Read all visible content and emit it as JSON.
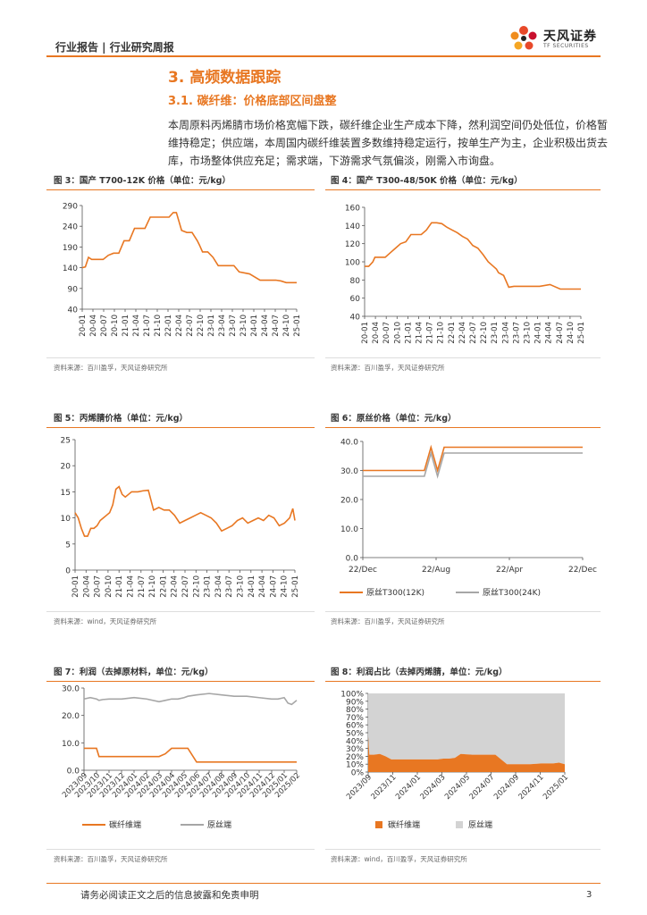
{
  "header": {
    "text": "行业报告 | 行业研究周报",
    "logo_cn": "天风证券",
    "logo_en": "TF SECURITIES"
  },
  "section": {
    "h1": "3. 高频数据跟踪",
    "h2": "3.1. 碳纤维：价格底部区间盘整"
  },
  "paragraph": "本周原料丙烯腈市场价格宽幅下跌，碳纤维企业生产成本下降，然利润空间仍处低位，价格暂维持稳定；供应端，本周国内碳纤维装置多数维持稳定运行，按单生产为主，企业积极出货去库，市场整体供应充足；需求端，下游需求气氛偏淡，刚需入市询盘。",
  "colors": {
    "accent": "#e87722",
    "grey": "#a6a6a6",
    "fill_grey": "#d3d3d3"
  },
  "figures": [
    {
      "title": "图 3：国产 T700-12K 价格（单位：元/kg）",
      "source": "资料来源：百川盈孚，天风证券研究所"
    },
    {
      "title": "图 4：国产 T300-48/50K 价格（单位：元/kg）",
      "source": "资料来源：百川盈孚，天风证券研究所"
    },
    {
      "title": "图 5：丙烯腈价格（单位：元/kg）",
      "source": "资料来源：wind，天风证券研究所"
    },
    {
      "title": "图 6：原丝价格（单位：元/kg）",
      "source": "资料来源：百川盈孚，天风证券研究所"
    },
    {
      "title": "图 7：利润（去掉原材料，单位：元/kg）",
      "source": "资料来源：百川盈孚，天风证券研究所"
    },
    {
      "title": "图 8：利润占比（去掉丙烯腈，单位：元/kg）",
      "source": "资料来源：wind，百川盈孚，天风证券研究所"
    }
  ],
  "chart_data": [
    {
      "type": "line",
      "title": "国产 T700-12K 价格",
      "ylim": [
        40,
        290
      ],
      "yticks": [
        "40",
        "90",
        "140",
        "190",
        "240",
        "290"
      ],
      "xticks": [
        "20-01",
        "20-04",
        "20-07",
        "20-10",
        "21-01",
        "21-04",
        "21-07",
        "21-10",
        "22-01",
        "22-04",
        "22-07",
        "22-10",
        "23-01",
        "23-04",
        "23-07",
        "23-10",
        "24-01",
        "24-04",
        "24-07",
        "24-10",
        "25-01"
      ],
      "x": [
        0,
        0.3,
        0.6,
        0.9,
        1.2,
        1.5,
        2,
        2.5,
        3,
        3.5,
        4,
        4.5,
        5,
        5.5,
        6,
        6.5,
        7,
        7.5,
        8,
        8.3,
        8.7,
        9,
        9.5,
        10,
        10.5,
        11,
        11.2,
        11.5,
        12,
        12.5,
        13,
        13.5,
        14,
        14.5,
        15,
        16,
        17,
        18,
        18.5,
        19,
        19.5,
        20,
        20.5
      ],
      "series": [
        {
          "values": [
            140,
            142,
            165,
            160,
            160,
            160,
            160,
            170,
            175,
            175,
            205,
            205,
            235,
            235,
            235,
            262,
            262,
            262,
            262,
            262,
            273,
            273,
            230,
            225,
            225,
            205,
            195,
            178,
            178,
            165,
            145,
            145,
            145,
            145,
            130,
            125,
            110,
            110,
            110,
            108,
            104,
            104,
            104
          ]
        }
      ]
    },
    {
      "type": "line",
      "title": "国产 T300-48/50K 价格",
      "ylim": [
        40,
        160
      ],
      "yticks": [
        "40",
        "60",
        "80",
        "100",
        "120",
        "140",
        "160"
      ],
      "xticks": [
        "20-01",
        "20-04",
        "20-07",
        "20-10",
        "21-01",
        "21-04",
        "21-07",
        "21-10",
        "22-01",
        "22-04",
        "22-07",
        "22-10",
        "23-01",
        "23-04",
        "23-07",
        "23-10",
        "24-01",
        "24-04",
        "24-07",
        "24-10",
        "25-01"
      ],
      "x": [
        0,
        0.4,
        0.8,
        1,
        1.5,
        2,
        2.5,
        3,
        3.5,
        4,
        4.5,
        5,
        5.5,
        6,
        6.5,
        7,
        7.5,
        8,
        8.5,
        9,
        9.5,
        10,
        10.5,
        11,
        11.5,
        12,
        12.5,
        12.8,
        13,
        13.5,
        14,
        14.5,
        15,
        16,
        17,
        18,
        19,
        20,
        21
      ],
      "series": [
        {
          "values": [
            95,
            95,
            100,
            105,
            105,
            105,
            110,
            115,
            120,
            122,
            130,
            130,
            130,
            135,
            143,
            143,
            142,
            138,
            135,
            132,
            128,
            125,
            118,
            115,
            108,
            100,
            95,
            92,
            88,
            85,
            72,
            73,
            73,
            73,
            73,
            75,
            70,
            70,
            70
          ]
        }
      ]
    },
    {
      "type": "line",
      "title": "丙烯腈价格",
      "ylim": [
        0,
        25
      ],
      "yticks": [
        "0",
        "5",
        "10",
        "15",
        "20",
        "25"
      ],
      "xticks": [
        "20-01",
        "20-04",
        "20-07",
        "20-10",
        "21-01",
        "21-04",
        "21-07",
        "21-10",
        "22-01",
        "22-04",
        "22-07",
        "22-10",
        "23-01",
        "23-04",
        "23-07",
        "23-10",
        "24-01",
        "24-04",
        "24-07",
        "24-10",
        "25-01"
      ],
      "x": [
        0,
        0.3,
        0.6,
        0.9,
        1.2,
        1.5,
        1.8,
        2.1,
        2.4,
        2.7,
        3,
        3.3,
        3.6,
        3.9,
        4.2,
        4.5,
        4.8,
        5.1,
        5.4,
        5.7,
        6,
        6.5,
        7,
        7.5,
        8,
        8.5,
        9,
        9.5,
        10,
        10.5,
        11,
        11.5,
        12,
        12.5,
        13,
        13.5,
        14,
        14.5,
        15,
        15.5,
        16,
        16.5,
        17,
        17.5,
        18,
        18.5,
        19,
        19.5,
        20,
        20.5,
        20.8,
        21
      ],
      "series": [
        {
          "values": [
            11,
            10,
            8,
            6.5,
            6.5,
            8,
            8,
            8.5,
            9.5,
            10,
            10.5,
            11,
            12.5,
            15.5,
            16,
            14.5,
            14,
            14.5,
            15,
            15,
            15,
            15.2,
            15.3,
            11.5,
            12,
            11.5,
            11.5,
            10.5,
            9,
            9.5,
            10,
            10.5,
            11,
            10.5,
            10,
            9,
            7.5,
            8,
            8.5,
            9.5,
            10,
            9,
            9.5,
            10,
            9.5,
            10.5,
            10,
            8.5,
            9,
            10,
            11.8,
            9.5
          ]
        }
      ]
    },
    {
      "type": "line",
      "title": "原丝价格",
      "ylim": [
        0,
        40
      ],
      "yticks": [
        "0.0",
        "10.0",
        "20.0",
        "30.0",
        "40.0"
      ],
      "xticks": [
        "22/Dec",
        "22/Aug",
        "22/Apr",
        "22/Dec"
      ],
      "legend": "bottom",
      "x": [
        0,
        0.1,
        0.2,
        0.25,
        0.28,
        0.31,
        0.34,
        0.37,
        0.4,
        1
      ],
      "series": [
        {
          "name": "原丝T300(12K)",
          "values": [
            30,
            30,
            30,
            30,
            30,
            38,
            30,
            38,
            38,
            38
          ]
        },
        {
          "name": "原丝T300(24K)",
          "values": [
            28,
            28,
            28,
            28,
            28,
            36,
            28,
            36,
            36,
            36
          ]
        }
      ]
    },
    {
      "type": "line",
      "title": "利润",
      "ylim": [
        0,
        30
      ],
      "yticks": [
        "0.0",
        "10.0",
        "20.0",
        "30.0"
      ],
      "xticks": [
        "2023/09",
        "2023/10",
        "2023/11",
        "2023/12",
        "2024/01",
        "2024/02",
        "2024/03",
        "2024/04",
        "2024/05",
        "2024/06",
        "2024/07",
        "2024/08",
        "2024/09",
        "2024/10",
        "2024/11",
        "2024/12",
        "2025/01",
        "2025/02"
      ],
      "legend": "bottom",
      "x": [
        0,
        0.5,
        1,
        1.2,
        1.5,
        2,
        3,
        4,
        5,
        6,
        6.5,
        7,
        7.5,
        8,
        8.3,
        9,
        10,
        11,
        12,
        13,
        14,
        15,
        15.5,
        16,
        16.3,
        16.6,
        17
      ],
      "series": [
        {
          "name": "碳纤维端",
          "values": [
            8,
            8,
            8,
            5,
            5,
            5,
            5,
            5,
            5,
            5,
            6,
            8,
            8,
            8,
            8,
            3,
            3,
            3,
            3,
            3,
            3,
            3,
            3,
            3,
            3,
            3,
            3
          ]
        },
        {
          "name": "原丝端",
          "values": [
            26,
            26.5,
            26,
            25.5,
            25.8,
            26,
            26,
            26.5,
            26,
            25,
            25.5,
            26,
            26,
            26.5,
            27,
            27.5,
            28,
            27.5,
            27,
            27,
            26.5,
            26,
            26,
            26.5,
            24.5,
            24,
            25.5
          ]
        }
      ]
    },
    {
      "type": "area",
      "title": "利润占比",
      "ylim": [
        0,
        100
      ],
      "yticks": [
        "0%",
        "10%",
        "20%",
        "30%",
        "40%",
        "50%",
        "60%",
        "70%",
        "80%",
        "90%",
        "100%"
      ],
      "xticks": [
        "2023/09",
        "2023/11",
        "2024/01",
        "2024/03",
        "2024/05",
        "2024/07",
        "2024/09",
        "2024/11",
        "2025/01"
      ],
      "legend": "bottom",
      "x": [
        0,
        0.1,
        0.3,
        0.5,
        1,
        1.5,
        2,
        2.5,
        3,
        4,
        5,
        5.5,
        6,
        6.5,
        7,
        7.5,
        8,
        9,
        10,
        11,
        12,
        13,
        14,
        15,
        16,
        16.5,
        17
      ],
      "series": [
        {
          "name": "碳纤维端",
          "values": [
            45,
            22,
            22,
            22,
            23,
            20,
            16,
            16,
            16,
            16,
            16,
            16,
            16,
            17,
            17,
            18,
            23,
            22,
            22,
            22,
            10,
            10,
            10,
            11,
            11,
            12,
            10
          ]
        },
        {
          "name": "原丝端",
          "values": [
            55,
            78,
            78,
            78,
            77,
            80,
            84,
            84,
            84,
            84,
            84,
            84,
            84,
            83,
            83,
            82,
            77,
            78,
            78,
            78,
            90,
            90,
            90,
            89,
            89,
            88,
            90
          ]
        }
      ]
    }
  ]
}
